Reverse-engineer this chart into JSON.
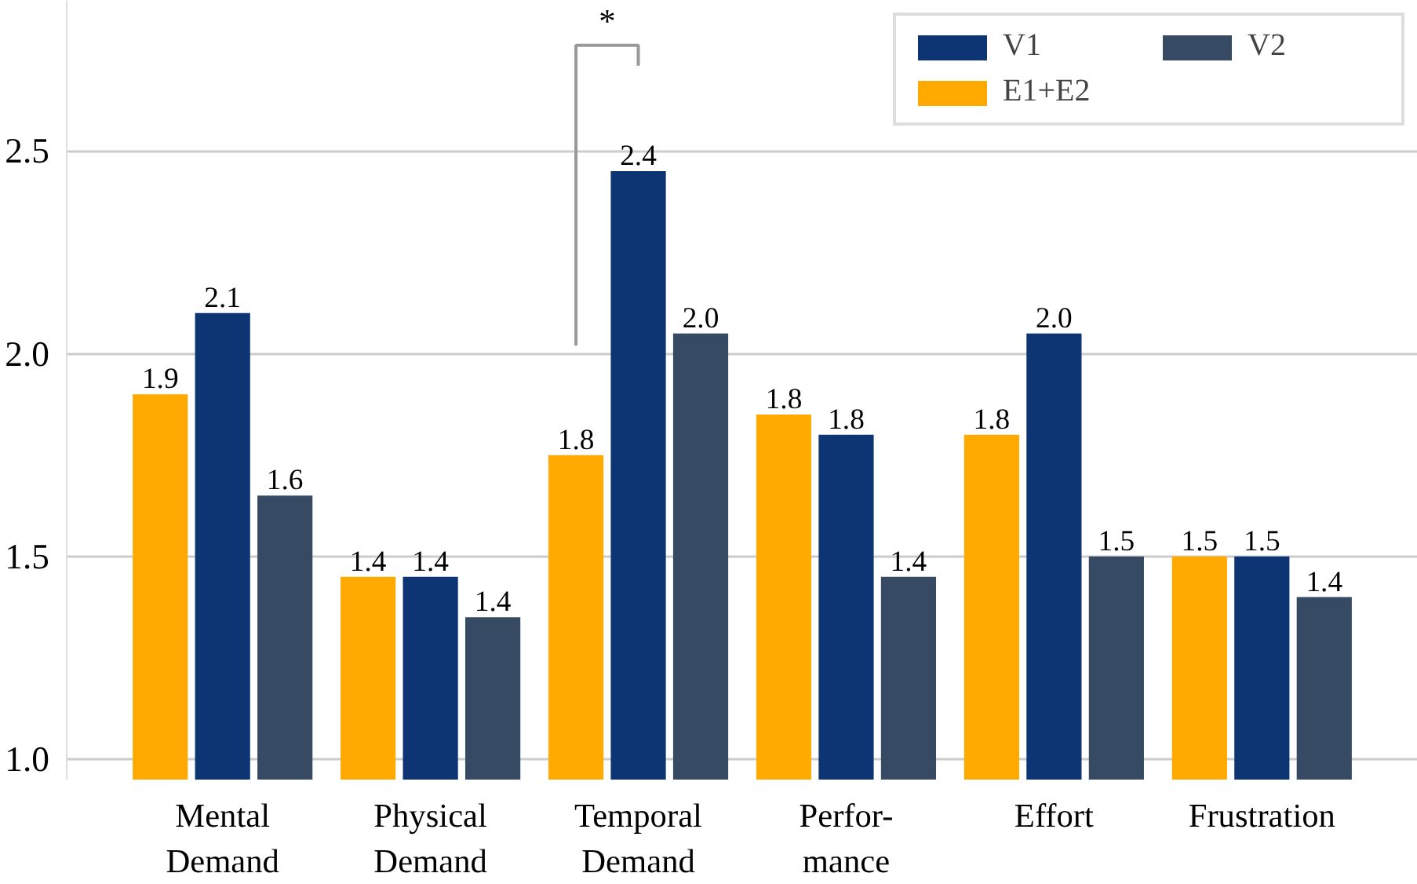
{
  "chart_data": {
    "type": "bar",
    "categories": [
      "Mental\nDemand",
      "Physical\nDemand",
      "Temporal\nDemand",
      "Perfor-\nmance",
      "Effort",
      "Frustration"
    ],
    "series": [
      {
        "name": "E1+E2",
        "color": "#ffaa00",
        "values": [
          1.9,
          1.45,
          1.75,
          1.85,
          1.8,
          1.5
        ],
        "value_labels": [
          "1.9",
          "1.4",
          "1.8",
          "1.8",
          "1.8",
          "1.5"
        ]
      },
      {
        "name": "V1",
        "color": "#0d3573",
        "values": [
          2.1,
          1.45,
          2.45,
          1.8,
          2.05,
          1.5
        ],
        "value_labels": [
          "2.1",
          "1.4",
          "2.4",
          "1.8",
          "2.0",
          "1.5"
        ]
      },
      {
        "name": "V2",
        "color": "#364a63",
        "values": [
          1.65,
          1.35,
          2.05,
          1.45,
          1.5,
          1.4
        ],
        "value_labels": [
          "1.6",
          "1.4",
          "2.0",
          "1.4",
          "1.5",
          "1.4"
        ]
      }
    ],
    "ylim": [
      0.95,
      2.87
    ],
    "yticks": [
      {
        "value": 1,
        "label": "1.0"
      },
      {
        "value": 1.5,
        "label": "1.5"
      },
      {
        "value": 2,
        "label": "2.0"
      },
      {
        "value": 2.5,
        "label": "2.5"
      }
    ],
    "grid": "y",
    "legend": "top right",
    "annotations": [
      "*"
    ]
  }
}
